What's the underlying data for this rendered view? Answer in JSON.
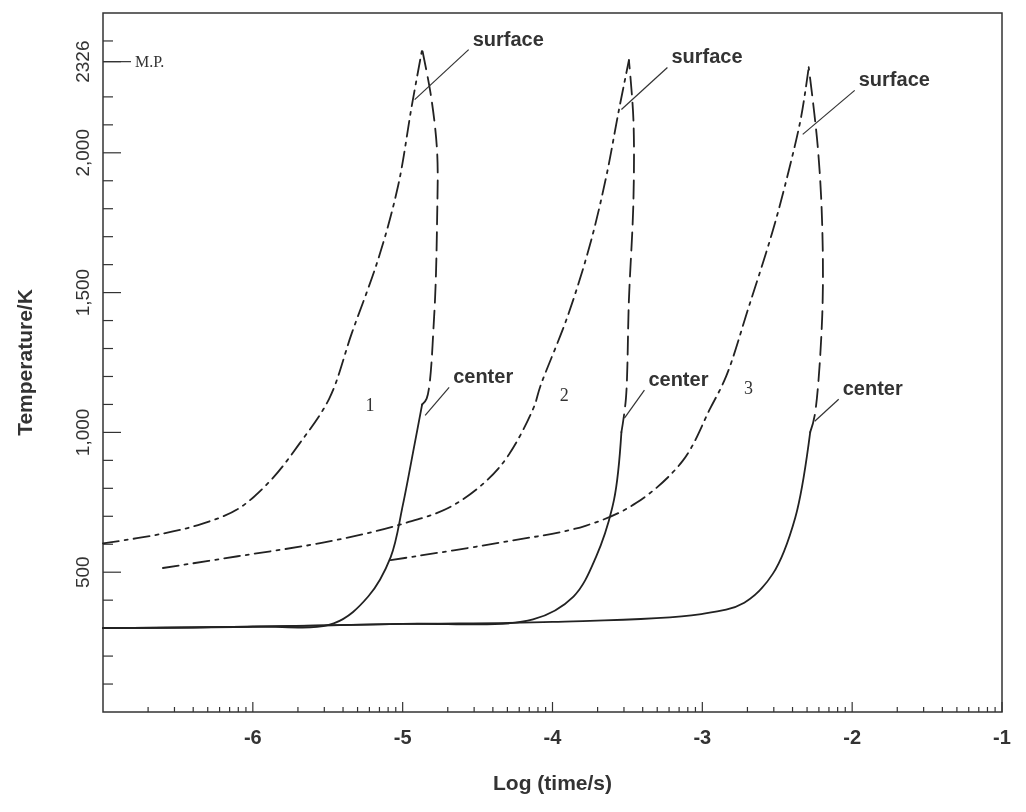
{
  "chart_data": {
    "type": "line",
    "xlabel": "Log (time/s)",
    "ylabel": "Temperature/K",
    "xlim": [
      -7,
      -1
    ],
    "ylim": [
      0,
      2500
    ],
    "xticks": [
      {
        "value": -6.699,
        "label": null
      },
      {
        "value": -6.523,
        "label": null
      },
      {
        "value": -6.398,
        "label": null
      },
      {
        "value": -6.301,
        "label": null
      },
      {
        "value": -6.222,
        "label": null
      },
      {
        "value": -6.155,
        "label": null
      },
      {
        "value": -6.097,
        "label": null
      },
      {
        "value": -6.046,
        "label": null
      },
      -6,
      {
        "value": -5.699,
        "label": null
      },
      {
        "value": -5.523,
        "label": null
      },
      {
        "value": -5.398,
        "label": null
      },
      {
        "value": -5.301,
        "label": null
      },
      {
        "value": -5.222,
        "label": null
      },
      {
        "value": -5.155,
        "label": null
      },
      {
        "value": -5.097,
        "label": null
      },
      {
        "value": -5.046,
        "label": null
      },
      -5,
      {
        "value": -4.699,
        "label": null
      },
      {
        "value": -4.523,
        "label": null
      },
      {
        "value": -4.398,
        "label": null
      },
      {
        "value": -4.301,
        "label": null
      },
      {
        "value": -4.222,
        "label": null
      },
      {
        "value": -4.155,
        "label": null
      },
      {
        "value": -4.097,
        "label": null
      },
      {
        "value": -4.046,
        "label": null
      },
      -4,
      {
        "value": -3.699,
        "label": null
      },
      {
        "value": -3.523,
        "label": null
      },
      {
        "value": -3.398,
        "label": null
      },
      {
        "value": -3.301,
        "label": null
      },
      {
        "value": -3.222,
        "label": null
      },
      {
        "value": -3.155,
        "label": null
      },
      {
        "value": -3.097,
        "label": null
      },
      {
        "value": -3.046,
        "label": null
      },
      -3,
      {
        "value": -2.699,
        "label": null
      },
      {
        "value": -2.523,
        "label": null
      },
      {
        "value": -2.398,
        "label": null
      },
      {
        "value": -2.301,
        "label": null
      },
      {
        "value": -2.222,
        "label": null
      },
      {
        "value": -2.155,
        "label": null
      },
      {
        "value": -2.097,
        "label": null
      },
      {
        "value": -2.046,
        "label": null
      },
      -2,
      {
        "value": -1.699,
        "label": null
      },
      {
        "value": -1.523,
        "label": null
      },
      {
        "value": -1.398,
        "label": null
      },
      {
        "value": -1.301,
        "label": null
      },
      {
        "value": -1.222,
        "label": null
      },
      {
        "value": -1.155,
        "label": null
      },
      {
        "value": -1.097,
        "label": null
      },
      {
        "value": -1.046,
        "label": null
      },
      -1
    ],
    "yticks": [
      {
        "value": 100,
        "label": null
      },
      {
        "value": 200,
        "label": null
      },
      {
        "value": 300,
        "label": null
      },
      {
        "value": 400,
        "label": null
      },
      500,
      {
        "value": 600,
        "label": null
      },
      {
        "value": 700,
        "label": null
      },
      {
        "value": 800,
        "label": null
      },
      {
        "value": 900,
        "label": null
      },
      {
        "value": 1000,
        "label": "1,000"
      },
      {
        "value": 1100,
        "label": null
      },
      {
        "value": 1200,
        "label": null
      },
      {
        "value": 1300,
        "label": null
      },
      {
        "value": 1400,
        "label": null
      },
      {
        "value": 1500,
        "label": "1,500"
      },
      {
        "value": 1600,
        "label": null
      },
      {
        "value": 1700,
        "label": null
      },
      {
        "value": 1800,
        "label": null
      },
      {
        "value": 1900,
        "label": null
      },
      {
        "value": 2000,
        "label": "2,000"
      },
      {
        "value": 2100,
        "label": null
      },
      {
        "value": 2200,
        "label": null
      },
      {
        "value": 2326,
        "label": "2326"
      },
      {
        "value": 2400,
        "label": null
      }
    ],
    "ref_lines": [
      {
        "axis": "y",
        "value": 2326,
        "label": "M.P."
      }
    ],
    "series": [
      {
        "color": "#222222",
        "line_style": "dashdot",
        "x": [
          -7.0,
          -6.6,
          -6.34,
          -6.1,
          -5.88,
          -5.69,
          -5.49,
          -5.34,
          -5.16,
          -5.03,
          -4.94,
          -4.87
        ],
        "values": [
          603,
          638,
          673,
          726,
          829,
          959,
          1121,
          1354,
          1625,
          1883,
          2165,
          2370
        ]
      },
      {
        "color": "#222222",
        "line_style": "solid",
        "x": [
          -7.0,
          -6.0,
          -5.46,
          -5.23,
          -5.08,
          -5.0,
          -4.92,
          -4.87
        ],
        "values": [
          300,
          305,
          317,
          413,
          554,
          737,
          959,
          1100
        ]
      },
      {
        "color": "#222222",
        "line_style": "dashed",
        "x": [
          -4.87,
          -4.84,
          -4.79,
          -4.77,
          -4.77,
          -4.81,
          -4.87
        ],
        "values": [
          1100,
          1121,
          1414,
          1767,
          2003,
          2200,
          2370
        ]
      },
      {
        "color": "#222222",
        "line_style": "dashdot",
        "x": [
          -6.6,
          -6.1,
          -5.49,
          -5.0,
          -4.66,
          -4.35,
          -4.13,
          -4.08,
          -3.9,
          -3.75,
          -3.64,
          -3.56,
          -3.49
        ],
        "values": [
          515,
          557,
          610,
          673,
          740,
          878,
          1083,
          1167,
          1414,
          1671,
          1918,
          2144,
          2331
        ]
      },
      {
        "color": "#222222",
        "line_style": "solid",
        "x": [
          -7.0,
          -6.0,
          -5.0,
          -4.13,
          -3.86,
          -3.71,
          -3.59,
          -3.54
        ],
        "values": [
          300,
          305,
          315,
          331,
          413,
          554,
          758,
          1001
        ]
      },
      {
        "color": "#222222",
        "line_style": "dashed",
        "x": [
          -3.54,
          -3.51,
          -3.49,
          -3.46,
          -3.46,
          -3.49
        ],
        "values": [
          1001,
          1121,
          1474,
          1826,
          2119,
          2331
        ]
      },
      {
        "color": "#222222",
        "line_style": "dashdot",
        "x": [
          -5.08,
          -4.35,
          -3.78,
          -3.44,
          -3.13,
          -2.95,
          -2.84,
          -2.69,
          -2.53,
          -2.42,
          -2.34,
          -2.29
        ],
        "values": [
          543,
          606,
          666,
          748,
          899,
          1083,
          1202,
          1449,
          1721,
          1943,
          2130,
          2306
        ]
      },
      {
        "color": "#222222",
        "line_style": "solid",
        "x": [
          -7.0,
          -6.0,
          -5.0,
          -4.0,
          -3.02,
          -2.72,
          -2.53,
          -2.38,
          -2.28
        ],
        "values": [
          300,
          305,
          315,
          322,
          349,
          391,
          494,
          695,
          1001
        ]
      },
      {
        "color": "#222222",
        "line_style": "dashed",
        "x": [
          -2.28,
          -2.25,
          -2.2,
          -2.2,
          -2.23,
          -2.29
        ],
        "values": [
          1001,
          1061,
          1414,
          1742,
          2024,
          2306
        ]
      }
    ],
    "annotations": [
      {
        "text": "surface",
        "x": -4.92,
        "y": 2190
      },
      {
        "text": "surface",
        "x": -3.54,
        "y": 2155
      },
      {
        "text": "surface",
        "x": -2.33,
        "y": 2066
      },
      {
        "text": "center",
        "x": -4.85,
        "y": 1061
      },
      {
        "text": "center",
        "x": -3.52,
        "y": 1051
      },
      {
        "text": "center",
        "x": -2.25,
        "y": 1040
      },
      "1",
      "2",
      "3"
    ]
  }
}
